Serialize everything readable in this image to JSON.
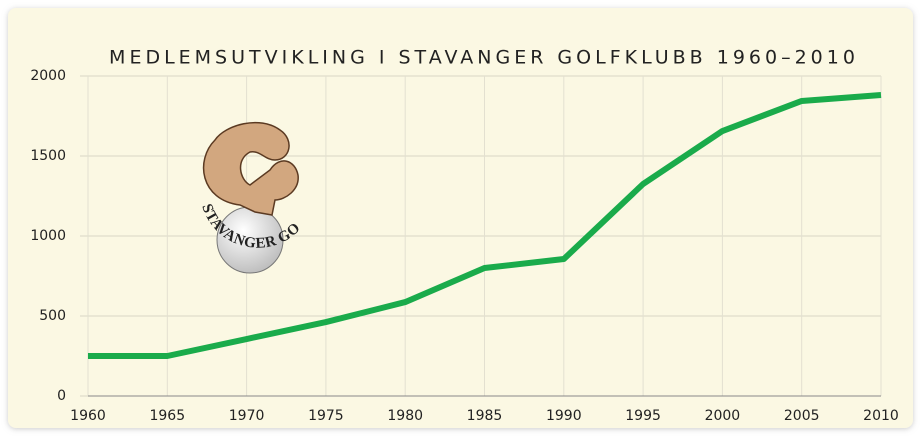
{
  "chart_data": {
    "type": "line",
    "title": "MEDLEMSUTVIKLING I STAVANGER GOLFKLUBB 1960–2010",
    "logo_text": "STAVANGER GOLFKLUBB",
    "x": [
      1960,
      1965,
      1970,
      1975,
      1980,
      1985,
      1990,
      1995,
      2000,
      2005,
      2010
    ],
    "series": [
      {
        "color": "#1aab4b",
        "values": [
          250,
          250,
          356,
          462,
          587,
          800,
          856,
          1325,
          1656,
          1844,
          1881
        ]
      }
    ],
    "xlim": [
      1960,
      2010
    ],
    "xticks": [
      1960,
      1965,
      1970,
      1975,
      1980,
      1985,
      1990,
      1995,
      2000,
      2005,
      2010
    ],
    "ylim": [
      0,
      2000
    ],
    "yticks": [
      0,
      500,
      1000,
      1500,
      2000
    ],
    "grid": true
  }
}
